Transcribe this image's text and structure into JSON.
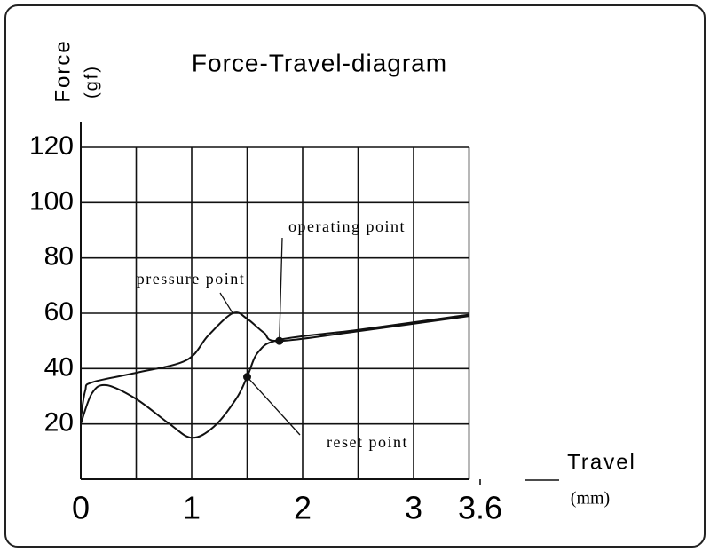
{
  "chart_data": {
    "type": "line",
    "title": "Force-Travel-diagram",
    "y_label": "Force",
    "y_unit": "(gf)",
    "x_label": "Travel",
    "x_unit": "(mm)",
    "xlim": [
      0,
      3.6
    ],
    "ylim": [
      0,
      120
    ],
    "xticks": [
      0,
      1,
      2,
      3,
      3.6
    ],
    "yticks": [
      20,
      40,
      60,
      80,
      100,
      120
    ],
    "x_minor_grid": [
      0.5,
      1.5,
      2.5,
      3.5
    ],
    "grid": true,
    "color": "#111111",
    "series": [
      {
        "color": "#111111",
        "x": [
          0,
          0.04,
          0.1,
          0.5,
          0.95,
          1.15,
          1.37,
          1.5,
          1.65,
          1.79,
          2.5,
          3.5
        ],
        "values": [
          22,
          32,
          35,
          38.5,
          43,
          52,
          60,
          58,
          53,
          50,
          53.5,
          59
        ]
      },
      {
        "color": "#111111",
        "x": [
          0,
          0.1,
          0.23,
          0.5,
          0.8,
          1.0,
          1.2,
          1.4,
          1.5,
          1.6,
          1.8,
          2.5,
          3.5
        ],
        "values": [
          20,
          31,
          34,
          29,
          20,
          15,
          19,
          29,
          37,
          46,
          50.5,
          54,
          59.5
        ]
      }
    ],
    "annotations": [
      {
        "text": "operating point",
        "x": 1.79,
        "y": 50
      },
      {
        "text": "pressure point",
        "x": 1.37,
        "y": 60
      },
      {
        "text": "reset point",
        "x": 1.5,
        "y": 37
      }
    ]
  }
}
